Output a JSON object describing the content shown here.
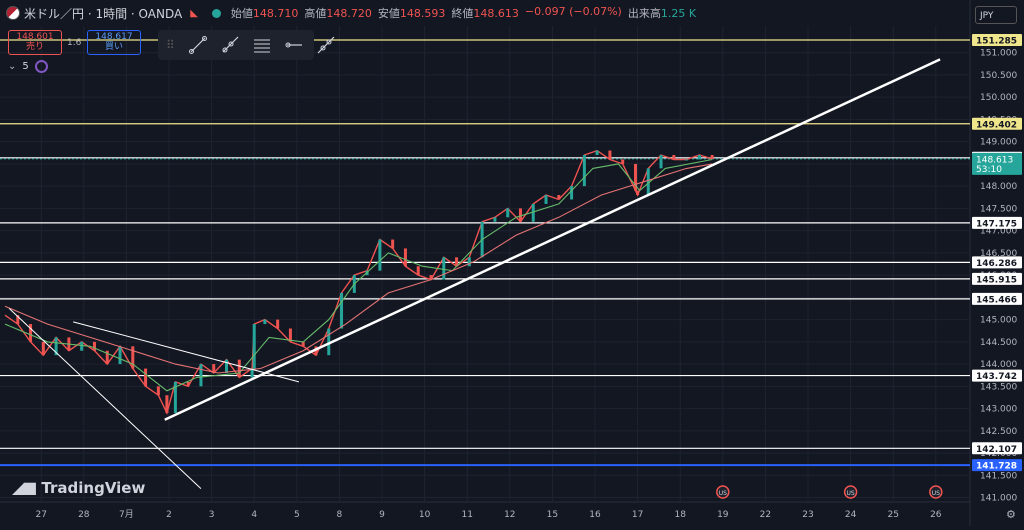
{
  "header": {
    "symbol": "米ドル／円 · 1時間 · OANDA",
    "open_label": "始値",
    "open": "148.710",
    "high_label": "高値",
    "high": "148.720",
    "low_label": "安値",
    "low": "148.593",
    "close_label": "終値",
    "close": "148.613",
    "change": "−0.097 (−0.07%)",
    "volume_label": "出来高",
    "volume": "1.25 K"
  },
  "trade": {
    "sell_price": "148.601",
    "sell_label": "売り",
    "spread": "1.6",
    "buy_price": "148.617",
    "buy_label": "買い"
  },
  "indicator": {
    "count": "5"
  },
  "toolbar": {
    "icons": [
      "trend-line-icon",
      "ray-icon",
      "parallel-channel-icon",
      "horizontal-ray-icon",
      "extended-line-icon"
    ]
  },
  "currency": "JPY",
  "logo_text": "TradingView",
  "colors": {
    "background": "#131722",
    "up": "#26a69a",
    "down": "#ef5350",
    "ma_fast": "#66bb6a",
    "ma_slow": "#e57373",
    "yellow_level": "#f0e68c",
    "blue_level": "#2962ff",
    "current_price": "#26a69a"
  },
  "chart_data": {
    "type": "line",
    "title": "",
    "xlabel": "",
    "ylabel": "",
    "ylim": [
      140.9,
      151.6
    ],
    "grid": true,
    "y_ticks": [
      "151.000",
      "150.500",
      "150.000",
      "149.500",
      "149.000",
      "148.500",
      "148.000",
      "147.500",
      "147.000",
      "146.500",
      "146.000",
      "145.500",
      "145.000",
      "144.500",
      "144.000",
      "143.500",
      "143.000",
      "142.500",
      "142.000",
      "141.500",
      "141.000"
    ],
    "x_ticks": [
      {
        "label": "27",
        "t": 0.85
      },
      {
        "label": "28",
        "t": 1.85
      },
      {
        "label": "7月",
        "t": 2.85
      },
      {
        "label": "2",
        "t": 3.85
      },
      {
        "label": "3",
        "t": 4.85
      },
      {
        "label": "4",
        "t": 5.85
      },
      {
        "label": "5",
        "t": 6.85
      },
      {
        "label": "8",
        "t": 7.85
      },
      {
        "label": "9",
        "t": 8.85
      },
      {
        "label": "10",
        "t": 9.85
      },
      {
        "label": "11",
        "t": 10.85
      },
      {
        "label": "12",
        "t": 11.85
      },
      {
        "label": "15",
        "t": 12.85
      },
      {
        "label": "16",
        "t": 13.85
      },
      {
        "label": "17",
        "t": 14.85
      },
      {
        "label": "18",
        "t": 15.85
      },
      {
        "label": "19",
        "t": 16.85
      },
      {
        "label": "22",
        "t": 17.85
      },
      {
        "label": "23",
        "t": 18.85
      },
      {
        "label": "24",
        "t": 19.85
      },
      {
        "label": "25",
        "t": 20.85
      },
      {
        "label": "26",
        "t": 21.85
      }
    ],
    "horizontal_levels": [
      {
        "value": 151.285,
        "label": "151.285",
        "color": "#f0e68c"
      },
      {
        "value": 149.402,
        "label": "149.402",
        "color": "#f0e68c"
      },
      {
        "value": 148.637,
        "label": "148.637",
        "color": "#ffffff"
      },
      {
        "value": 147.175,
        "label": "147.175",
        "color": "#ffffff"
      },
      {
        "value": 146.286,
        "label": "146.286",
        "color": "#ffffff"
      },
      {
        "value": 145.915,
        "label": "145.915",
        "color": "#ffffff"
      },
      {
        "value": 145.466,
        "label": "145.466",
        "color": "#ffffff"
      },
      {
        "value": 143.742,
        "label": "143.742",
        "color": "#ffffff"
      },
      {
        "value": 142.107,
        "label": "142.107",
        "color": "#ffffff"
      },
      {
        "value": 141.728,
        "label": "141.728",
        "color": "#2962ff"
      }
    ],
    "current_price": {
      "value": 148.613,
      "label": "148.613",
      "countdown": "53:10"
    },
    "trend_lines": [
      {
        "name": "support-uptrend",
        "t1": 3.75,
        "v1": 142.75,
        "t2": 21.95,
        "v2": 150.85
      },
      {
        "name": "old-downtrend-line",
        "t1": 0.1,
        "v1": 145.25,
        "t2": 4.6,
        "v2": 141.2
      },
      {
        "name": "triangle-upper-line",
        "t1": 1.6,
        "v1": 144.95,
        "t2": 6.9,
        "v2": 143.6
      }
    ],
    "series": [
      {
        "name": "price",
        "x": [
          0.0,
          0.3,
          0.6,
          0.9,
          1.2,
          1.5,
          1.8,
          2.1,
          2.4,
          2.7,
          3.0,
          3.3,
          3.6,
          3.8,
          4.0,
          4.3,
          4.6,
          4.9,
          5.2,
          5.5,
          5.8,
          5.85,
          6.1,
          6.4,
          6.7,
          7.0,
          7.3,
          7.6,
          7.9,
          8.2,
          8.5,
          8.8,
          9.1,
          9.4,
          9.7,
          10.0,
          10.3,
          10.6,
          10.9,
          11.2,
          11.5,
          11.8,
          12.1,
          12.4,
          12.7,
          13.0,
          13.3,
          13.6,
          13.9,
          14.2,
          14.5,
          14.8,
          14.85,
          15.1,
          15.4,
          15.7,
          16.0,
          16.3,
          16.6
        ],
        "values": [
          145.1,
          144.9,
          144.5,
          144.2,
          144.6,
          144.3,
          144.5,
          144.3,
          144.0,
          144.4,
          143.9,
          143.5,
          143.3,
          142.9,
          143.6,
          143.5,
          144.0,
          143.8,
          144.1,
          143.7,
          143.9,
          144.9,
          145.0,
          144.8,
          144.5,
          144.4,
          144.2,
          144.8,
          145.6,
          146.0,
          146.1,
          146.8,
          146.6,
          146.2,
          146.0,
          145.9,
          146.4,
          146.2,
          146.4,
          147.2,
          147.3,
          147.5,
          147.2,
          147.6,
          147.8,
          147.7,
          148.0,
          148.7,
          148.8,
          148.6,
          148.5,
          147.9,
          147.8,
          148.4,
          148.7,
          148.6,
          148.6,
          148.7,
          148.613
        ]
      },
      {
        "name": "ma-fast",
        "x": [
          0.0,
          1.0,
          2.0,
          3.0,
          3.8,
          4.5,
          5.5,
          6.2,
          7.0,
          7.6,
          8.2,
          9.0,
          9.8,
          10.5,
          11.2,
          12.0,
          13.0,
          13.8,
          14.4,
          14.9,
          15.5,
          16.6
        ],
        "values": [
          144.9,
          144.5,
          144.4,
          144.0,
          143.4,
          143.7,
          143.8,
          144.6,
          144.5,
          145.0,
          145.8,
          146.5,
          146.2,
          146.1,
          146.8,
          147.3,
          147.6,
          148.4,
          148.5,
          147.9,
          148.4,
          148.6
        ]
      },
      {
        "name": "ma-slow",
        "x": [
          0.0,
          1.0,
          2.0,
          3.0,
          4.0,
          5.0,
          6.0,
          7.0,
          8.0,
          9.0,
          10.0,
          11.0,
          12.0,
          13.0,
          14.0,
          15.0,
          16.0,
          16.6
        ],
        "values": [
          145.3,
          144.9,
          144.6,
          144.3,
          144.0,
          143.8,
          143.9,
          144.3,
          144.9,
          145.6,
          145.9,
          146.3,
          146.9,
          147.3,
          147.8,
          148.1,
          148.4,
          148.5
        ]
      }
    ],
    "events": [
      {
        "t": 16.85,
        "label": "US"
      },
      {
        "t": 19.85,
        "label": "US"
      },
      {
        "t": 21.85,
        "label": "US"
      }
    ]
  }
}
